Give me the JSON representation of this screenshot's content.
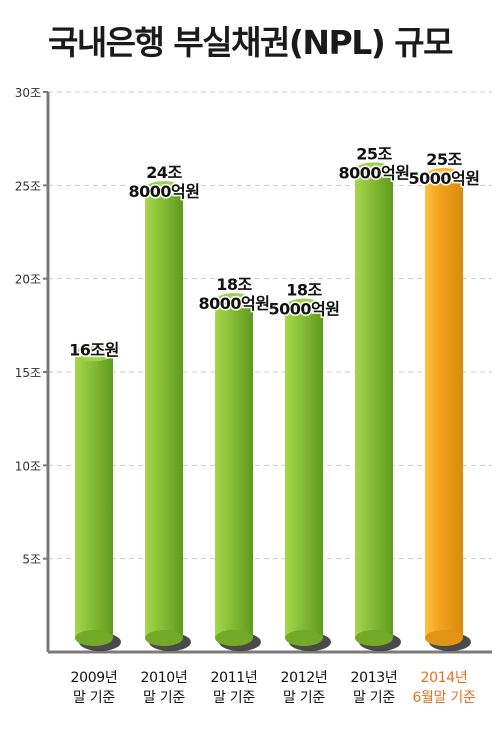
{
  "chart_data": {
    "type": "bar",
    "title": "국내은행 부실채권(NPL) 규모",
    "xlabel": "",
    "ylabel": "",
    "ylim": [
      0,
      30
    ],
    "yticks": [
      {
        "value": 5,
        "label": "5조"
      },
      {
        "value": 10,
        "label": "10조"
      },
      {
        "value": 15,
        "label": "15조"
      },
      {
        "value": 20,
        "label": "20조"
      },
      {
        "value": 25,
        "label": "25조"
      },
      {
        "value": 30,
        "label": "30조"
      }
    ],
    "grid": true,
    "categories": [
      [
        "2009년",
        "말 기준"
      ],
      [
        "2010년",
        "말 기준"
      ],
      [
        "2011년",
        "말 기준"
      ],
      [
        "2012년",
        "말 기준"
      ],
      [
        "2013년",
        "말 기준"
      ],
      [
        "2014년",
        "6월말 기준"
      ]
    ],
    "values": [
      16,
      24.8,
      18.8,
      18.5,
      25.8,
      25.5
    ],
    "data_labels": [
      [
        "16조원"
      ],
      [
        "24조",
        "8000억원"
      ],
      [
        "18조",
        "8000억원"
      ],
      [
        "18조",
        "5000억원"
      ],
      [
        "25조",
        "8000억원"
      ],
      [
        "25조",
        "5000억원"
      ]
    ],
    "highlight_index": 5,
    "colors": {
      "bar": "#8cc33a",
      "bar_highlight": "#f5a41d",
      "highlight_label": "#e8711d",
      "grid": "#cccccc",
      "axis": "#7a7a7a"
    }
  }
}
